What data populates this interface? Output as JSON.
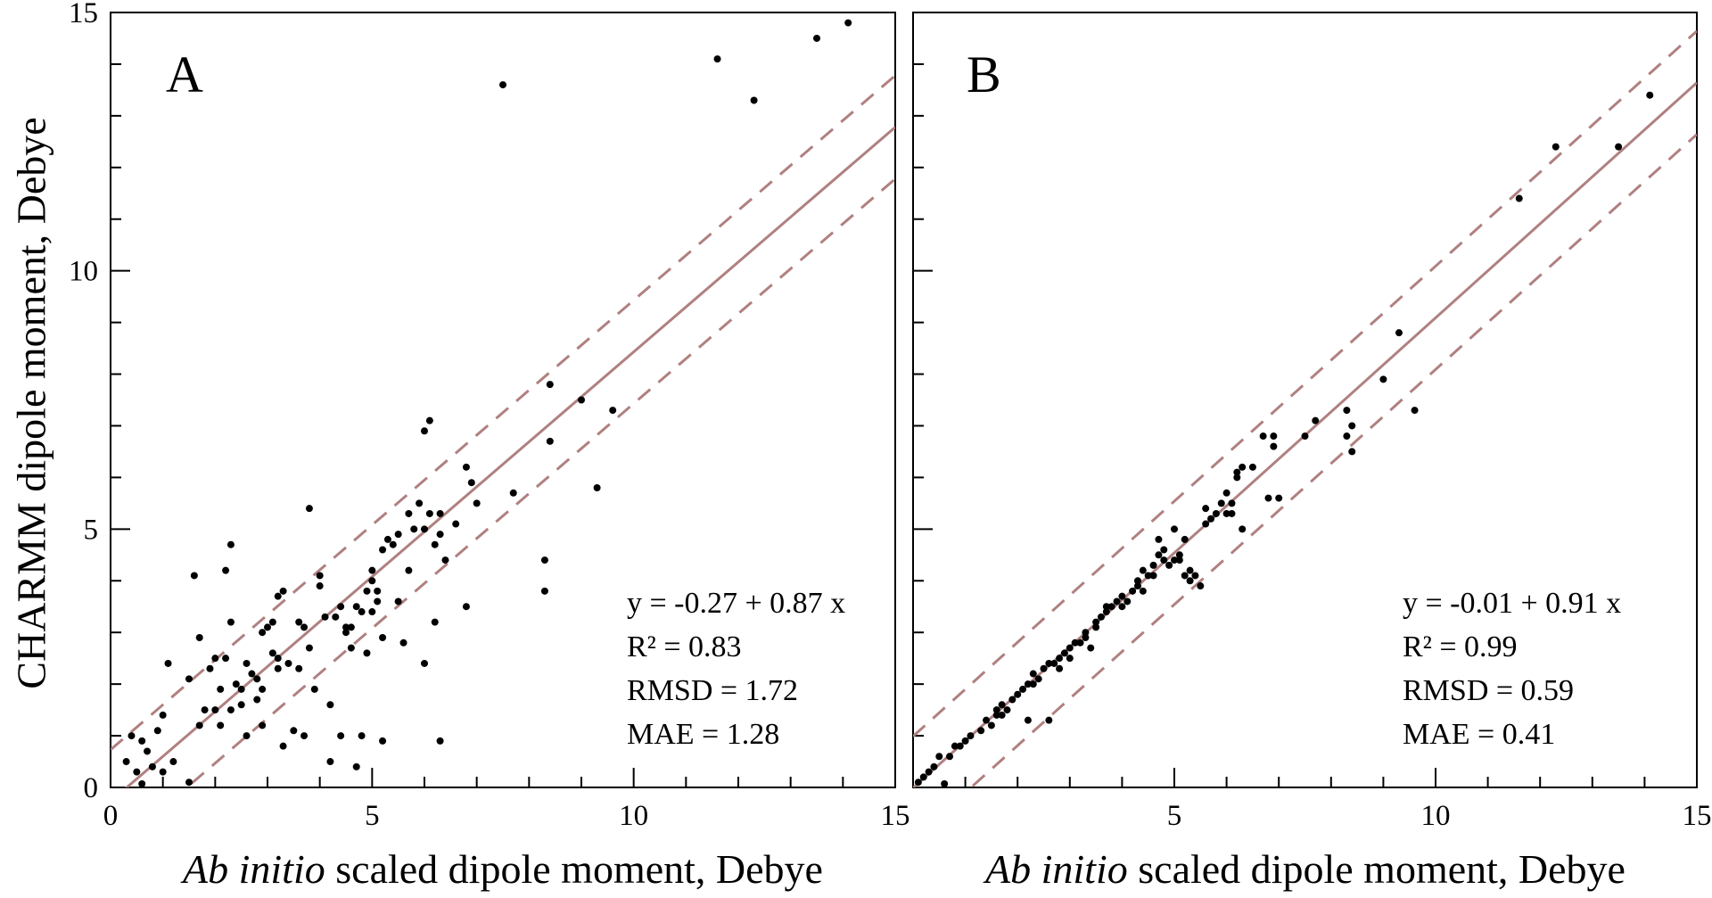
{
  "figure": {
    "ylabel": "CHARMM dipole moment, Debye",
    "colors": {
      "fit_line": "#b08080",
      "points": "#000000",
      "frame": "#000000"
    }
  },
  "chart_data": [
    {
      "type": "scatter",
      "panel_label": "A",
      "xlabel_italic": "Ab initio",
      "xlabel_rest": " scaled dipole moment, Debye",
      "ylabel": "CHARMM dipole moment, Debye",
      "xlim": [
        0,
        15
      ],
      "ylim": [
        0,
        15
      ],
      "x_ticks": [
        "0",
        "5",
        "10",
        "15"
      ],
      "y_ticks": [
        "0",
        "5",
        "10",
        "15"
      ],
      "fit": {
        "intercept": -0.27,
        "slope": 0.87,
        "band": 1.0
      },
      "stats": [
        "y = -0.27 + 0.87 x",
        "R² = 0.83",
        "RMSD = 1.72",
        "MAE = 1.28"
      ],
      "points": [
        [
          0.3,
          0.5
        ],
        [
          0.4,
          1.0
        ],
        [
          0.5,
          0.3
        ],
        [
          0.6,
          0.0
        ],
        [
          0.6,
          0.9
        ],
        [
          0.7,
          0.7
        ],
        [
          0.8,
          0.4
        ],
        [
          0.9,
          1.1
        ],
        [
          1.0,
          0.3
        ],
        [
          1.0,
          1.4
        ],
        [
          1.1,
          2.4
        ],
        [
          1.2,
          0.5
        ],
        [
          1.5,
          0.1
        ],
        [
          1.5,
          2.1
        ],
        [
          1.6,
          4.1
        ],
        [
          1.7,
          1.2
        ],
        [
          1.7,
          2.9
        ],
        [
          1.8,
          1.5
        ],
        [
          1.9,
          2.3
        ],
        [
          2.0,
          1.5
        ],
        [
          2.0,
          2.5
        ],
        [
          2.1,
          1.9
        ],
        [
          2.1,
          1.2
        ],
        [
          2.2,
          4.2
        ],
        [
          2.2,
          2.5
        ],
        [
          2.3,
          3.2
        ],
        [
          2.3,
          1.5
        ],
        [
          2.3,
          4.7
        ],
        [
          2.4,
          2.0
        ],
        [
          2.5,
          1.6
        ],
        [
          2.5,
          1.9
        ],
        [
          2.6,
          2.4
        ],
        [
          2.6,
          1.0
        ],
        [
          2.7,
          2.2
        ],
        [
          2.8,
          1.7
        ],
        [
          2.8,
          2.1
        ],
        [
          2.9,
          1.2
        ],
        [
          2.9,
          1.9
        ],
        [
          2.9,
          3.0
        ],
        [
          3.0,
          3.1
        ],
        [
          3.1,
          3.2
        ],
        [
          3.1,
          2.6
        ],
        [
          3.2,
          2.5
        ],
        [
          3.2,
          2.3
        ],
        [
          3.2,
          3.7
        ],
        [
          3.3,
          0.8
        ],
        [
          3.3,
          3.8
        ],
        [
          3.4,
          2.4
        ],
        [
          3.5,
          1.1
        ],
        [
          3.6,
          2.3
        ],
        [
          3.6,
          3.2
        ],
        [
          3.7,
          3.1
        ],
        [
          3.7,
          1.0
        ],
        [
          3.8,
          2.7
        ],
        [
          3.8,
          5.4
        ],
        [
          3.9,
          1.9
        ],
        [
          4.0,
          3.9
        ],
        [
          4.0,
          4.1
        ],
        [
          4.1,
          3.3
        ],
        [
          4.2,
          0.5
        ],
        [
          4.2,
          1.6
        ],
        [
          4.3,
          3.3
        ],
        [
          4.4,
          3.5
        ],
        [
          4.4,
          1.0
        ],
        [
          4.5,
          3.0
        ],
        [
          4.5,
          3.1
        ],
        [
          4.6,
          2.7
        ],
        [
          4.6,
          3.1
        ],
        [
          4.7,
          0.4
        ],
        [
          4.7,
          3.5
        ],
        [
          4.8,
          1.0
        ],
        [
          4.8,
          3.4
        ],
        [
          4.9,
          2.6
        ],
        [
          4.9,
          3.8
        ],
        [
          5.0,
          3.4
        ],
        [
          5.0,
          4.0
        ],
        [
          5.0,
          4.2
        ],
        [
          5.1,
          3.6
        ],
        [
          5.1,
          3.8
        ],
        [
          5.2,
          2.9
        ],
        [
          5.2,
          0.9
        ],
        [
          5.2,
          4.6
        ],
        [
          5.3,
          4.8
        ],
        [
          5.4,
          4.7
        ],
        [
          5.5,
          3.6
        ],
        [
          5.5,
          4.9
        ],
        [
          5.6,
          2.8
        ],
        [
          5.7,
          4.2
        ],
        [
          5.7,
          5.3
        ],
        [
          5.8,
          5.0
        ],
        [
          5.9,
          5.5
        ],
        [
          6.0,
          2.4
        ],
        [
          6.0,
          5.0
        ],
        [
          6.0,
          6.9
        ],
        [
          6.1,
          7.1
        ],
        [
          6.1,
          5.3
        ],
        [
          6.2,
          3.2
        ],
        [
          6.2,
          4.7
        ],
        [
          6.3,
          0.9
        ],
        [
          6.3,
          4.9
        ],
        [
          6.3,
          5.3
        ],
        [
          6.4,
          4.4
        ],
        [
          6.6,
          5.1
        ],
        [
          6.8,
          3.5
        ],
        [
          6.8,
          6.2
        ],
        [
          6.9,
          5.9
        ],
        [
          7.0,
          5.5
        ],
        [
          7.5,
          13.6
        ],
        [
          7.7,
          5.7
        ],
        [
          8.3,
          3.8
        ],
        [
          8.3,
          4.4
        ],
        [
          8.4,
          7.8
        ],
        [
          8.4,
          6.7
        ],
        [
          9.0,
          7.5
        ],
        [
          9.3,
          5.8
        ],
        [
          9.6,
          7.3
        ],
        [
          11.6,
          14.1
        ],
        [
          12.3,
          13.3
        ],
        [
          13.5,
          14.5
        ],
        [
          14.1,
          14.8
        ]
      ]
    },
    {
      "type": "scatter",
      "panel_label": "B",
      "xlabel_italic": "Ab initio",
      "xlabel_rest": " scaled dipole moment, Debye",
      "xlim": [
        0,
        15
      ],
      "ylim": [
        0,
        15
      ],
      "x_ticks": [
        "5",
        "10",
        "15"
      ],
      "y_ticks": [],
      "fit": {
        "intercept": -0.01,
        "slope": 0.91,
        "band": 1.0
      },
      "stats": [
        "y = -0.01 + 0.91 x",
        "R² = 0.99",
        "RMSD = 0.59",
        "MAE = 0.41"
      ],
      "points": [
        [
          0.1,
          0.1
        ],
        [
          0.2,
          0.2
        ],
        [
          0.3,
          0.3
        ],
        [
          0.4,
          0.4
        ],
        [
          0.5,
          0.6
        ],
        [
          0.6,
          0.0
        ],
        [
          0.7,
          0.6
        ],
        [
          0.8,
          0.8
        ],
        [
          0.9,
          0.8
        ],
        [
          1.0,
          0.9
        ],
        [
          1.1,
          1.0
        ],
        [
          1.3,
          1.1
        ],
        [
          1.4,
          1.3
        ],
        [
          1.5,
          1.2
        ],
        [
          1.6,
          1.4
        ],
        [
          1.6,
          1.5
        ],
        [
          1.7,
          1.4
        ],
        [
          1.7,
          1.6
        ],
        [
          1.8,
          1.5
        ],
        [
          1.9,
          1.7
        ],
        [
          2.0,
          1.8
        ],
        [
          2.1,
          1.9
        ],
        [
          2.2,
          1.3
        ],
        [
          2.2,
          2.0
        ],
        [
          2.3,
          2.0
        ],
        [
          2.3,
          2.2
        ],
        [
          2.4,
          2.1
        ],
        [
          2.5,
          2.3
        ],
        [
          2.6,
          1.3
        ],
        [
          2.6,
          2.4
        ],
        [
          2.7,
          2.4
        ],
        [
          2.8,
          2.3
        ],
        [
          2.8,
          2.5
        ],
        [
          2.9,
          2.6
        ],
        [
          3.0,
          2.5
        ],
        [
          3.0,
          2.7
        ],
        [
          3.1,
          2.8
        ],
        [
          3.2,
          2.8
        ],
        [
          3.3,
          2.9
        ],
        [
          3.3,
          3.0
        ],
        [
          3.4,
          2.7
        ],
        [
          3.5,
          3.1
        ],
        [
          3.5,
          3.2
        ],
        [
          3.6,
          3.3
        ],
        [
          3.7,
          3.4
        ],
        [
          3.7,
          3.5
        ],
        [
          3.8,
          3.5
        ],
        [
          3.9,
          3.6
        ],
        [
          4.0,
          3.5
        ],
        [
          4.0,
          3.7
        ],
        [
          4.1,
          3.6
        ],
        [
          4.2,
          3.8
        ],
        [
          4.3,
          3.9
        ],
        [
          4.3,
          4.0
        ],
        [
          4.4,
          3.8
        ],
        [
          4.4,
          4.2
        ],
        [
          4.5,
          4.1
        ],
        [
          4.6,
          4.3
        ],
        [
          4.6,
          4.1
        ],
        [
          4.7,
          4.5
        ],
        [
          4.7,
          4.8
        ],
        [
          4.8,
          4.6
        ],
        [
          4.8,
          4.4
        ],
        [
          4.9,
          4.3
        ],
        [
          5.0,
          4.4
        ],
        [
          5.0,
          5.0
        ],
        [
          5.1,
          4.4
        ],
        [
          5.1,
          4.5
        ],
        [
          5.2,
          4.1
        ],
        [
          5.2,
          4.8
        ],
        [
          5.3,
          4.0
        ],
        [
          5.3,
          4.2
        ],
        [
          5.4,
          4.1
        ],
        [
          5.5,
          3.9
        ],
        [
          5.6,
          5.1
        ],
        [
          5.6,
          5.4
        ],
        [
          5.7,
          5.2
        ],
        [
          5.8,
          5.3
        ],
        [
          5.9,
          5.5
        ],
        [
          6.0,
          5.3
        ],
        [
          6.0,
          5.7
        ],
        [
          6.1,
          5.3
        ],
        [
          6.1,
          5.5
        ],
        [
          6.2,
          6.0
        ],
        [
          6.2,
          6.1
        ],
        [
          6.3,
          5.0
        ],
        [
          6.3,
          6.2
        ],
        [
          6.5,
          6.2
        ],
        [
          6.7,
          6.8
        ],
        [
          6.8,
          5.6
        ],
        [
          6.9,
          6.6
        ],
        [
          6.9,
          6.8
        ],
        [
          7.0,
          5.6
        ],
        [
          7.5,
          6.8
        ],
        [
          7.7,
          7.1
        ],
        [
          8.3,
          7.3
        ],
        [
          8.3,
          6.8
        ],
        [
          8.4,
          7.0
        ],
        [
          8.4,
          6.5
        ],
        [
          9.0,
          7.9
        ],
        [
          9.3,
          8.8
        ],
        [
          9.6,
          7.3
        ],
        [
          11.6,
          11.4
        ],
        [
          12.3,
          12.4
        ],
        [
          13.5,
          12.4
        ],
        [
          14.1,
          13.4
        ]
      ]
    }
  ]
}
